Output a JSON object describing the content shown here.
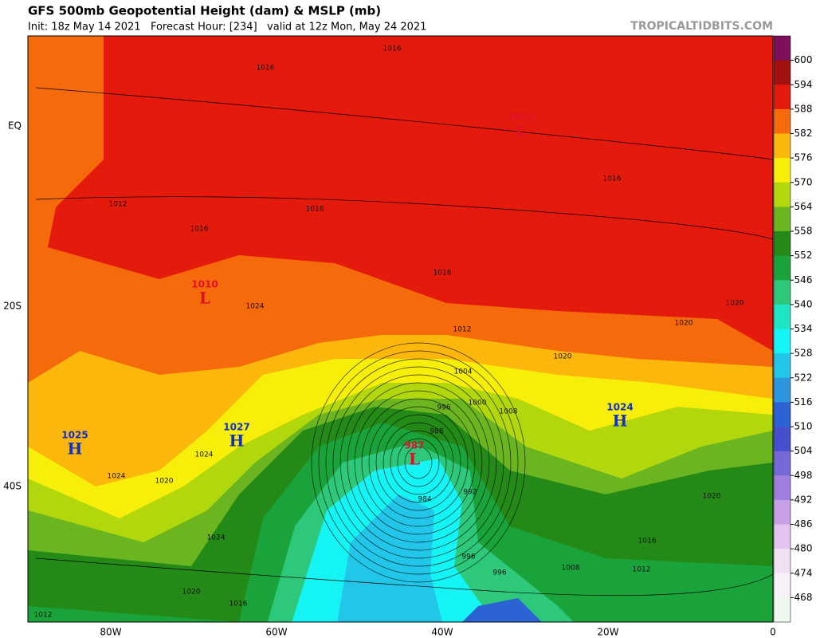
{
  "header": {
    "title": "GFS 500mb Geopotential Height (dam) & MSLP (mb)",
    "subtitle": "Init: 18z May 14 2021   Forecast Hour: [234]   valid at 12z Mon, May 24 2021",
    "credit": "TROPICALTIDBITS.COM"
  },
  "axes": {
    "x_labels": [
      "80W",
      "60W",
      "40W",
      "20W",
      "0"
    ],
    "y_labels": [
      "EQ",
      "20S",
      "40S"
    ]
  },
  "colorbar": {
    "levels": [
      600,
      594,
      588,
      582,
      576,
      570,
      564,
      558,
      552,
      546,
      540,
      534,
      528,
      522,
      516,
      510,
      504,
      498,
      492,
      486,
      480,
      474,
      468
    ],
    "colors": [
      "#7d0f5c",
      "#a3110d",
      "#e31a0c",
      "#f56a0a",
      "#fbb70c",
      "#f7ef0a",
      "#b2d70c",
      "#6bb520",
      "#238a17",
      "#1aa33a",
      "#2ec87a",
      "#1de6c6",
      "#14f4f4",
      "#21c6e8",
      "#2e95e0",
      "#2b62d4",
      "#4650cf",
      "#7668d6",
      "#9e7fe0",
      "#c7a0e8",
      "#e3c3f0",
      "#f2e0f5",
      "#f6f0f8",
      "#eef8ee"
    ]
  },
  "pressure_centers": [
    {
      "symbol": "L",
      "value": 1015
    },
    {
      "symbol": "L",
      "value": 1010
    },
    {
      "symbol": "H",
      "value": 1025
    },
    {
      "symbol": "H",
      "value": 1027
    },
    {
      "symbol": "L",
      "value": 987
    },
    {
      "symbol": "H",
      "value": 1024
    }
  ],
  "isobar_labels": [
    1016,
    1016,
    1016,
    1016,
    1016,
    1016,
    1012,
    1012,
    1020,
    1020,
    1020,
    1020,
    1020,
    1020,
    1024,
    1024,
    1024,
    1024,
    1004,
    1000,
    996,
    996,
    996,
    1008,
    1008,
    988,
    992,
    984,
    1016,
    1016,
    1012,
    1012
  ]
}
